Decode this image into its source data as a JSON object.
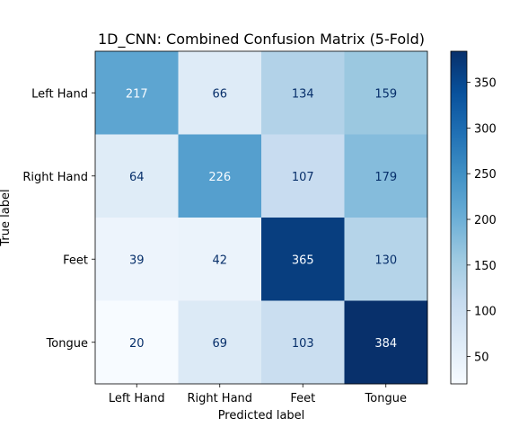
{
  "chart_data": {
    "type": "heatmap",
    "title": "1D_CNN: Combined Confusion Matrix (5-Fold)",
    "xlabel": "Predicted label",
    "ylabel": "True label",
    "x_categories": [
      "Left Hand",
      "Right Hand",
      "Feet",
      "Tongue"
    ],
    "y_categories": [
      "Left Hand",
      "Right Hand",
      "Feet",
      "Tongue"
    ],
    "values": [
      [
        217,
        66,
        134,
        159
      ],
      [
        64,
        226,
        107,
        179
      ],
      [
        39,
        42,
        365,
        130
      ],
      [
        20,
        69,
        103,
        384
      ]
    ],
    "colormap": "Blues",
    "vmin": 20,
    "vmax": 384,
    "colorbar_ticks": [
      50,
      100,
      150,
      200,
      250,
      300,
      350
    ],
    "colors": {
      "low": "#f7fbff",
      "high": "#08306b",
      "text_on_light": "#08306b",
      "text_on_dark": "#f7fbff"
    }
  }
}
